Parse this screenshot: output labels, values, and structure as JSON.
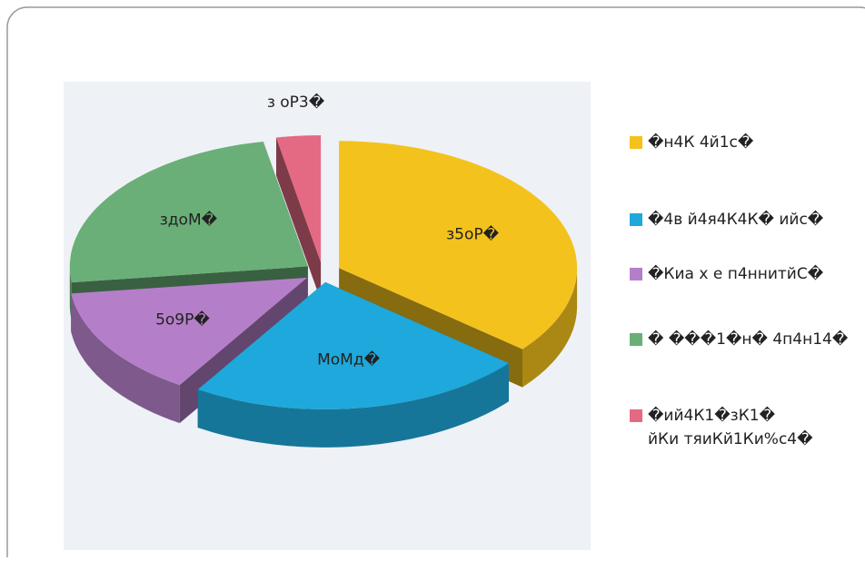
{
  "chart_data": {
    "type": "pie",
    "categories": [
      "�н4К 4й1с�",
      "�4в й4я4К4К� ийс�",
      "�Киа х е п4ннитйС�",
      "� ���1�н� 4п4н14�",
      "�ий4К1�зК1�\nйКи тяиКй1Ки%с4�"
    ],
    "values": [
      36,
      23,
      14,
      24,
      3
    ],
    "value_labels": [
      "з5оР�",
      "МоМд�",
      "5о9Р�",
      "здоМ�",
      "з оР3�"
    ],
    "colors": [
      "#f4c21c",
      "#1fa8db",
      "#b47fc8",
      "#6aaf78",
      "#e46a84"
    ],
    "legend": "right"
  }
}
